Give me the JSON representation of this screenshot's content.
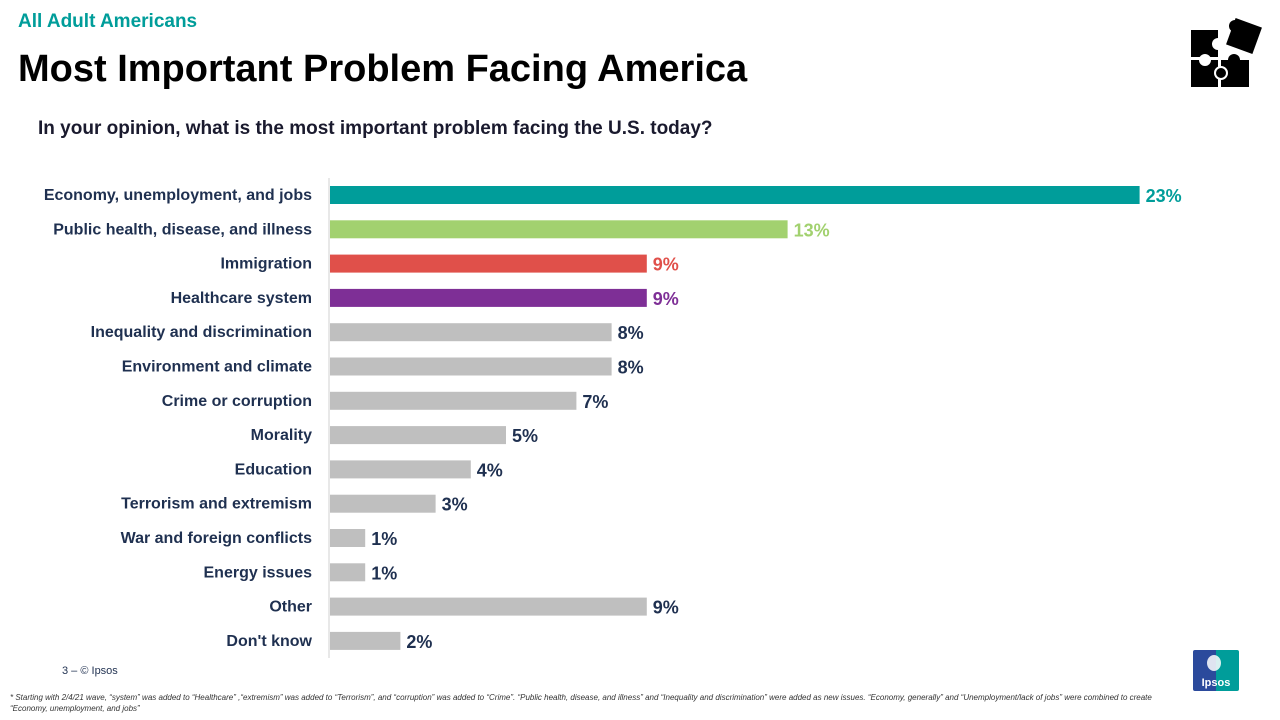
{
  "header": {
    "audience": "All Adult Americans",
    "title": "Most Important Problem Facing America",
    "question": "In your opinion, what is the most important problem facing the U.S. today?"
  },
  "chart_data": {
    "type": "bar",
    "orientation": "horizontal",
    "categories": [
      "Economy, unemployment, and jobs",
      "Public health, disease, and illness",
      "Immigration",
      "Healthcare system",
      "Inequality and discrimination",
      "Environment and climate",
      "Crime or corruption",
      "Morality",
      "Education",
      "Terrorism and extremism",
      "War and foreign conflicts",
      "Energy issues",
      "Other",
      "Don't know"
    ],
    "values": [
      23,
      13,
      9,
      9,
      8,
      8,
      7,
      5,
      4,
      3,
      1,
      1,
      9,
      2
    ],
    "labels": [
      "23%",
      "13%",
      "9%",
      "9%",
      "8%",
      "8%",
      "7%",
      "5%",
      "4%",
      "3%",
      "1%",
      "1%",
      "9%",
      "2%"
    ],
    "colors": [
      "#009d9a",
      "#a2d16f",
      "#e0504a",
      "#7e2f96",
      "#bfbfbf",
      "#bfbfbf",
      "#bfbfbf",
      "#bfbfbf",
      "#bfbfbf",
      "#bfbfbf",
      "#bfbfbf",
      "#bfbfbf",
      "#bfbfbf",
      "#bfbfbf"
    ],
    "label_colors": [
      "#009d9a",
      "#a2d16f",
      "#e0504a",
      "#7e2f96",
      "#1f3050",
      "#1f3050",
      "#1f3050",
      "#1f3050",
      "#1f3050",
      "#1f3050",
      "#1f3050",
      "#1f3050",
      "#1f3050",
      "#1f3050"
    ],
    "unit": "%",
    "grid": false
  },
  "footer": {
    "page": "3 –  © Ipsos",
    "logo_text": "Ipsos",
    "footnote": "* Starting with 2/4/21 wave, “system” was added to “Healthcare” ,“extremism” was added to “Terrorism”, and “corruption” was added to “Crime”. “Public health, disease, and illness” and “Inequality and discrimination” were added as new issues. “Economy, generally” and “Unemployment/lack of jobs” were combined to create “Economy, unemployment, and jobs”"
  }
}
